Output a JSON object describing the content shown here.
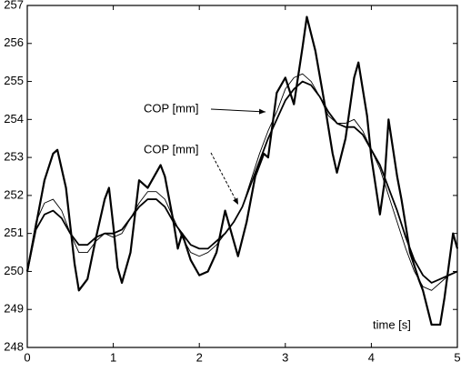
{
  "chart_data": {
    "type": "line",
    "annotations": [
      "COP [mm]",
      "COP [mm]"
    ],
    "xlabel": "time [s]",
    "xlim": [
      0,
      5
    ],
    "xticks": [
      0,
      1,
      2,
      3,
      4,
      5
    ],
    "ylim": [
      248,
      257
    ],
    "yticks": [
      248,
      249,
      250,
      251,
      252,
      253,
      254,
      255,
      256,
      257
    ],
    "series": [
      {
        "color": "#000000",
        "width": 2.2,
        "x": [
          0,
          0.1,
          0.2,
          0.3,
          0.35,
          0.45,
          0.55,
          0.6,
          0.7,
          0.8,
          0.9,
          0.95,
          1.0,
          1.05,
          1.1,
          1.2,
          1.3,
          1.4,
          1.45,
          1.55,
          1.6,
          1.7,
          1.75,
          1.8,
          1.9,
          2.0,
          2.1,
          2.2,
          2.3,
          2.4,
          2.45,
          2.55,
          2.65,
          2.75,
          2.8,
          2.9,
          3.0,
          3.1,
          3.2,
          3.25,
          3.35,
          3.45,
          3.55,
          3.6,
          3.7,
          3.8,
          3.85,
          3.95,
          4.0,
          4.1,
          4.15,
          4.2,
          4.3,
          4.35,
          4.45,
          4.55,
          4.6,
          4.7,
          4.8,
          4.85,
          4.95,
          5.0
        ],
        "values": [
          250,
          251.2,
          252.4,
          253.1,
          253.2,
          252.2,
          250.2,
          249.5,
          249.8,
          250.9,
          251.9,
          252.2,
          251.2,
          250.1,
          249.7,
          250.5,
          252.4,
          252.2,
          252.4,
          252.8,
          252.5,
          251.3,
          250.6,
          251,
          250.3,
          249.9,
          250,
          250.5,
          251.6,
          250.8,
          250.4,
          251.3,
          252.5,
          253.1,
          253,
          254.7,
          255.1,
          254.4,
          255.9,
          256.7,
          255.8,
          254.5,
          253.1,
          252.6,
          253.5,
          255.1,
          255.5,
          254.1,
          253,
          251.5,
          252.3,
          254,
          252.5,
          251.9,
          250.5,
          249.8,
          249.5,
          248.6,
          248.6,
          249.3,
          251,
          250.6
        ]
      },
      {
        "color": "#000000",
        "width": 1.8,
        "x": [
          0,
          0.1,
          0.2,
          0.3,
          0.4,
          0.5,
          0.6,
          0.7,
          0.8,
          0.9,
          1.0,
          1.1,
          1.2,
          1.3,
          1.4,
          1.5,
          1.6,
          1.7,
          1.8,
          1.9,
          2.0,
          2.1,
          2.2,
          2.3,
          2.4,
          2.5,
          2.6,
          2.7,
          2.8,
          2.9,
          3.0,
          3.1,
          3.2,
          3.3,
          3.4,
          3.5,
          3.6,
          3.7,
          3.8,
          3.9,
          4.0,
          4.1,
          4.2,
          4.3,
          4.4,
          4.5,
          4.6,
          4.7,
          4.8,
          4.9,
          5.0
        ],
        "values": [
          250,
          251.1,
          251.5,
          251.6,
          251.4,
          251,
          250.7,
          250.7,
          250.9,
          251,
          251,
          251.1,
          251.4,
          251.7,
          251.9,
          251.9,
          251.7,
          251.3,
          251,
          250.7,
          250.6,
          250.6,
          250.8,
          251,
          251.3,
          251.7,
          252.3,
          252.9,
          253.5,
          254,
          254.5,
          254.8,
          255,
          254.9,
          254.6,
          254.2,
          253.9,
          253.8,
          253.8,
          253.6,
          253.2,
          252.8,
          252.2,
          251.6,
          250.9,
          250.3,
          249.9,
          249.7,
          249.8,
          249.9,
          250
        ]
      },
      {
        "color": "#000000",
        "width": 0.9,
        "x": [
          0,
          0.1,
          0.2,
          0.3,
          0.4,
          0.5,
          0.6,
          0.7,
          0.8,
          0.9,
          1.0,
          1.1,
          1.2,
          1.3,
          1.4,
          1.5,
          1.6,
          1.7,
          1.8,
          1.9,
          2.0,
          2.1,
          2.2,
          2.3,
          2.4,
          2.5,
          2.6,
          2.7,
          2.8,
          2.9,
          3.0,
          3.1,
          3.2,
          3.3,
          3.4,
          3.5,
          3.6,
          3.7,
          3.8,
          3.9,
          4.0,
          4.1,
          4.2,
          4.3,
          4.4,
          4.5,
          4.6,
          4.7,
          4.8,
          4.9,
          5.0
        ],
        "values": [
          250,
          251.3,
          251.8,
          251.9,
          251.6,
          251,
          250.5,
          250.5,
          250.8,
          251,
          250.9,
          251,
          251.4,
          251.8,
          252.1,
          252.1,
          251.9,
          251.4,
          250.9,
          250.5,
          250.4,
          250.5,
          250.7,
          251,
          251.3,
          251.7,
          252.4,
          253.1,
          253.7,
          254.2,
          254.8,
          255.1,
          255.2,
          255,
          254.6,
          254.1,
          253.9,
          253.9,
          254,
          253.7,
          253.2,
          252.7,
          252,
          251.3,
          250.6,
          250,
          249.6,
          249.5,
          249.7,
          249.9,
          250
        ]
      }
    ]
  }
}
